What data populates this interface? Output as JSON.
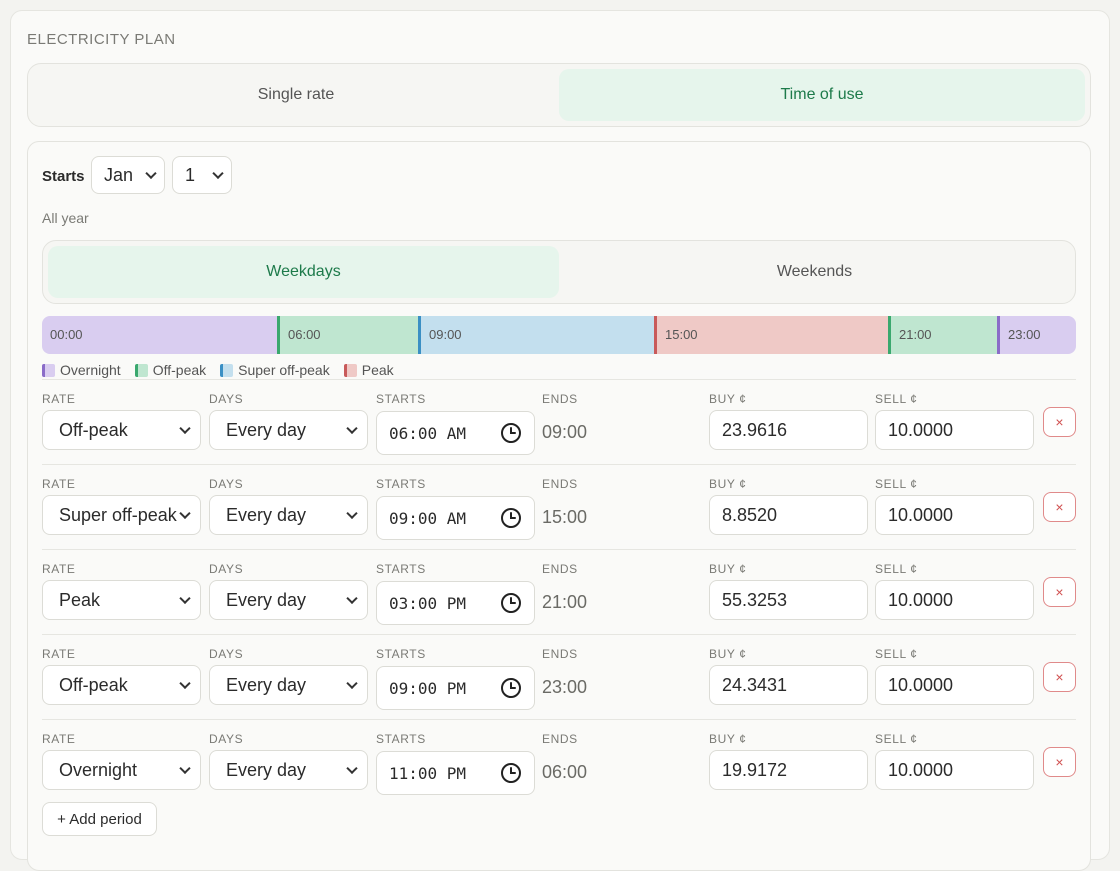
{
  "section_title": "ELECTRICITY PLAN",
  "plan_tabs": [
    {
      "label": "Single rate",
      "active": false
    },
    {
      "label": "Time of use",
      "active": true
    }
  ],
  "starts": {
    "label": "Starts",
    "month": "Jan",
    "day": "1"
  },
  "period_note": "All year",
  "day_tabs": [
    {
      "label": "Weekdays",
      "active": true
    },
    {
      "label": "Weekends",
      "active": false
    }
  ],
  "timeline": [
    {
      "label": "00:00",
      "rate": "Overnight"
    },
    {
      "label": "06:00",
      "rate": "Off-peak"
    },
    {
      "label": "09:00",
      "rate": "Super off-peak"
    },
    {
      "label": "15:00",
      "rate": "Peak"
    },
    {
      "label": "21:00",
      "rate": "Off-peak"
    },
    {
      "label": "23:00",
      "rate": "Overnight"
    }
  ],
  "legend": [
    {
      "label": "Overnight",
      "color": "#d9cdf0",
      "edge": "#8a6cc8"
    },
    {
      "label": "Off-peak",
      "color": "#bfe6d0",
      "edge": "#3aa86e"
    },
    {
      "label": "Super off-peak",
      "color": "#c3dfee",
      "edge": "#3a8fc4"
    },
    {
      "label": "Peak",
      "color": "#efc9c6",
      "edge": "#c85a5a"
    }
  ],
  "columns": {
    "rate": "RATE",
    "days": "DAYS",
    "starts": "STARTS",
    "ends": "ENDS",
    "buy": "BUY ¢",
    "sell": "SELL ¢"
  },
  "periods": [
    {
      "rate": "Off-peak",
      "days": "Every day",
      "starts": "06:00  AM",
      "ends": "09:00",
      "buy": "23.9616",
      "sell": "10.0000"
    },
    {
      "rate": "Super off-peak",
      "days": "Every day",
      "starts": "09:00  AM",
      "ends": "15:00",
      "buy": "8.8520",
      "sell": "10.0000"
    },
    {
      "rate": "Peak",
      "days": "Every day",
      "starts": "03:00  PM",
      "ends": "21:00",
      "buy": "55.3253",
      "sell": "10.0000"
    },
    {
      "rate": "Off-peak",
      "days": "Every day",
      "starts": "09:00  PM",
      "ends": "23:00",
      "buy": "24.3431",
      "sell": "10.0000"
    },
    {
      "rate": "Overnight",
      "days": "Every day",
      "starts": "11:00  PM",
      "ends": "06:00",
      "buy": "19.9172",
      "sell": "10.0000"
    }
  ],
  "delete_label": "×",
  "add_label": "+ Add period"
}
